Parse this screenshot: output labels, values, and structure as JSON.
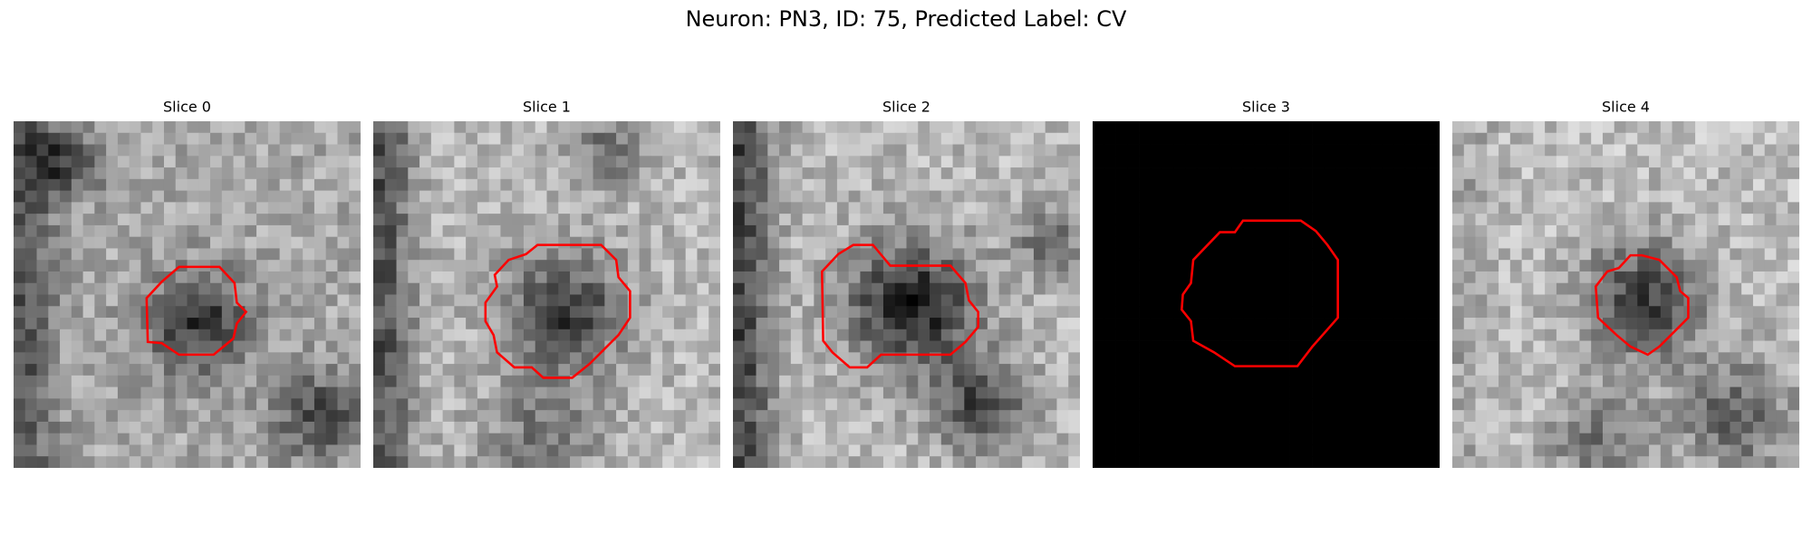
{
  "header": {
    "title": "Neuron: PN3, ID: 75, Predicted Label: CV"
  },
  "panels": [
    {
      "title": "Slice 0"
    },
    {
      "title": "Slice 1"
    },
    {
      "title": "Slice 2"
    },
    {
      "title": "Slice 3"
    },
    {
      "title": "Slice 4"
    }
  ]
}
